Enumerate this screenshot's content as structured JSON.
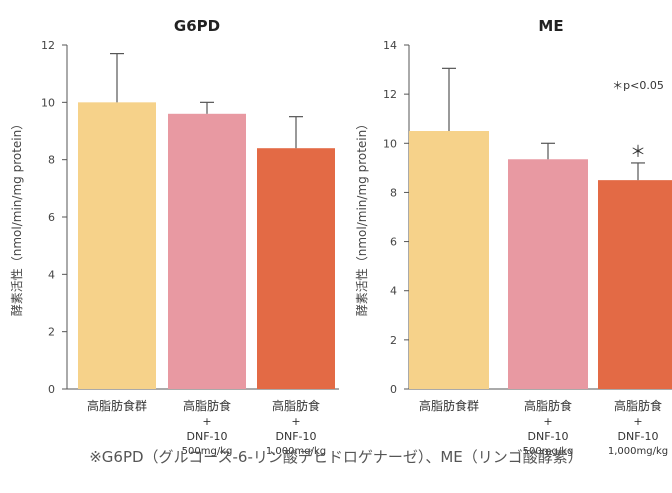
{
  "chart_data": [
    {
      "type": "bar",
      "title": "G6PD",
      "ylabel": "酵素活性（nmol/min/mg protein）",
      "ylim": [
        0,
        12
      ],
      "yticks": [
        0,
        2,
        4,
        6,
        8,
        10,
        12
      ],
      "categories": [
        {
          "line1": "高脂肪食群",
          "line2": "",
          "line3": "",
          "line4": ""
        },
        {
          "line1": "高脂肪食",
          "line2": "+",
          "line3": "DNF-10",
          "line4": "500mg/kg"
        },
        {
          "line1": "高脂肪食",
          "line2": "+",
          "line3": "DNF-10",
          "line4": "1,000mg/kg"
        }
      ],
      "values": [
        10.0,
        9.6,
        8.4
      ],
      "errors": [
        1.7,
        0.4,
        1.1
      ],
      "colors": [
        "#F6D28A",
        "#E899A2",
        "#E36A45"
      ],
      "significance": [
        "",
        "",
        ""
      ],
      "note": ""
    },
    {
      "type": "bar",
      "title": "ME",
      "ylabel": "酵素活性（nmol/min/mg protein）",
      "ylim": [
        0,
        14
      ],
      "yticks": [
        0,
        2,
        4,
        6,
        8,
        10,
        12,
        14
      ],
      "categories": [
        {
          "line1": "高脂肪食群",
          "line2": "",
          "line3": "",
          "line4": ""
        },
        {
          "line1": "高脂肪食",
          "line2": "+",
          "line3": "DNF-10",
          "line4": "500mg/kg"
        },
        {
          "line1": "高脂肪食",
          "line2": "+",
          "line3": "DNF-10",
          "line4": "1,000mg/kg"
        }
      ],
      "values": [
        10.5,
        9.35,
        8.5
      ],
      "errors": [
        2.55,
        0.65,
        0.7
      ],
      "colors": [
        "#F6D28A",
        "#E899A2",
        "#E36A45"
      ],
      "significance": [
        "",
        "",
        "＊"
      ],
      "note": "＊p<0.05"
    }
  ],
  "footnote": "※G6PD（グルコース-6-リン酸デヒドロゲナーゼ）、ME（リンゴ酸酵素）"
}
